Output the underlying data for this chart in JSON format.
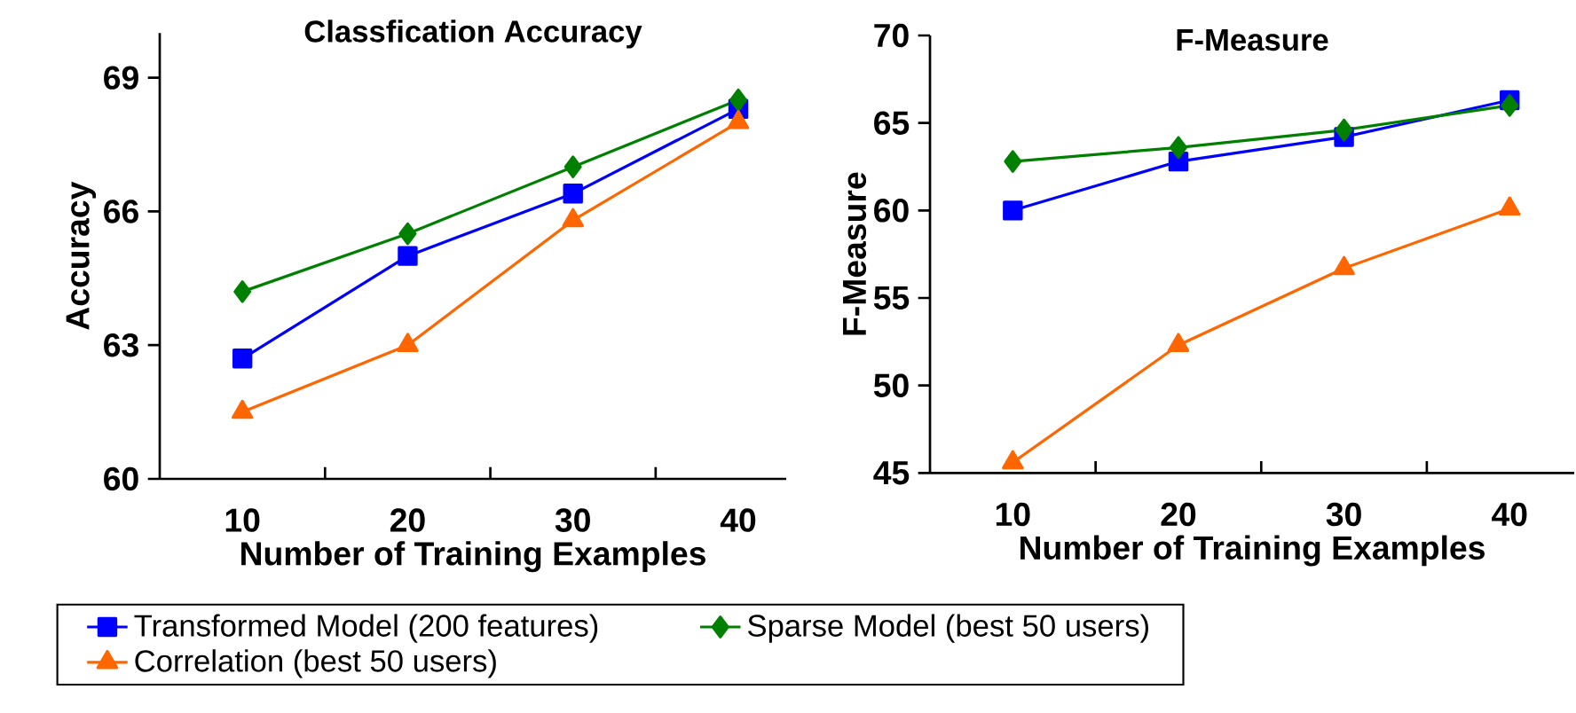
{
  "chart_data": [
    {
      "type": "line",
      "title": "Classfication Accuracy",
      "xlabel": "Number of Training Examples",
      "ylabel": "Accuracy",
      "categories": [
        "10",
        "20",
        "30",
        "40"
      ],
      "ylim": [
        60,
        70
      ],
      "yticks": [
        60,
        63,
        66,
        69
      ],
      "legend": "bottom",
      "grid": false,
      "series": [
        {
          "name": "Transformed Model (200 features)",
          "color": "#0000ff",
          "marker": "square",
          "values": [
            62.7,
            65.0,
            66.4,
            68.3
          ]
        },
        {
          "name": "Sparse Model (best 50 users)",
          "color": "#008000",
          "marker": "diamond",
          "values": [
            64.2,
            65.5,
            67.0,
            68.5
          ]
        },
        {
          "name": "Correlation (best 50 users)",
          "color": "#ff6600",
          "marker": "triangle",
          "values": [
            61.5,
            63.0,
            65.8,
            68.0
          ]
        }
      ]
    },
    {
      "type": "line",
      "title": "F-Measure",
      "xlabel": "Number of Training Examples",
      "ylabel": "F-Measure",
      "categories": [
        "10",
        "20",
        "30",
        "40"
      ],
      "ylim": [
        45,
        70
      ],
      "yticks": [
        45,
        50,
        55,
        60,
        65,
        70
      ],
      "grid": false,
      "series": [
        {
          "color": "#0000ff",
          "marker": "square",
          "values": [
            60.0,
            62.8,
            64.2,
            66.3
          ]
        },
        {
          "color": "#008000",
          "marker": "diamond",
          "values": [
            62.8,
            63.6,
            64.6,
            66.0
          ]
        },
        {
          "color": "#ff6600",
          "marker": "triangle",
          "values": [
            45.6,
            52.3,
            56.7,
            60.1
          ]
        }
      ]
    }
  ]
}
